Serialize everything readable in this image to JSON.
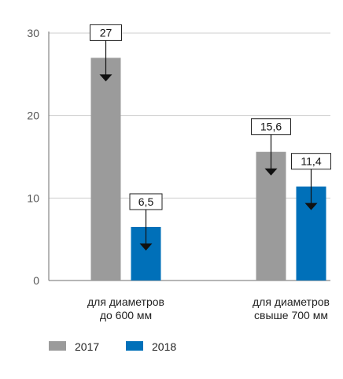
{
  "chart_data": {
    "type": "bar",
    "categories": [
      [
        "для диаметров",
        "до 600 мм"
      ],
      [
        "для диаметров",
        "свыше 700 мм"
      ]
    ],
    "series": [
      {
        "name": "2017",
        "color": "#9b9b9b",
        "values": [
          27,
          15.6
        ],
        "labels": [
          "27",
          "15,6"
        ]
      },
      {
        "name": "2018",
        "color": "#0070b9",
        "values": [
          6.5,
          11.4
        ],
        "labels": [
          "6,5",
          "11,4"
        ]
      }
    ],
    "yticks": [
      0,
      10,
      20,
      30
    ],
    "ylim": [
      0,
      30
    ],
    "grid": true,
    "legend": "bottom-left",
    "title": "",
    "xlabel": "",
    "ylabel": ""
  }
}
